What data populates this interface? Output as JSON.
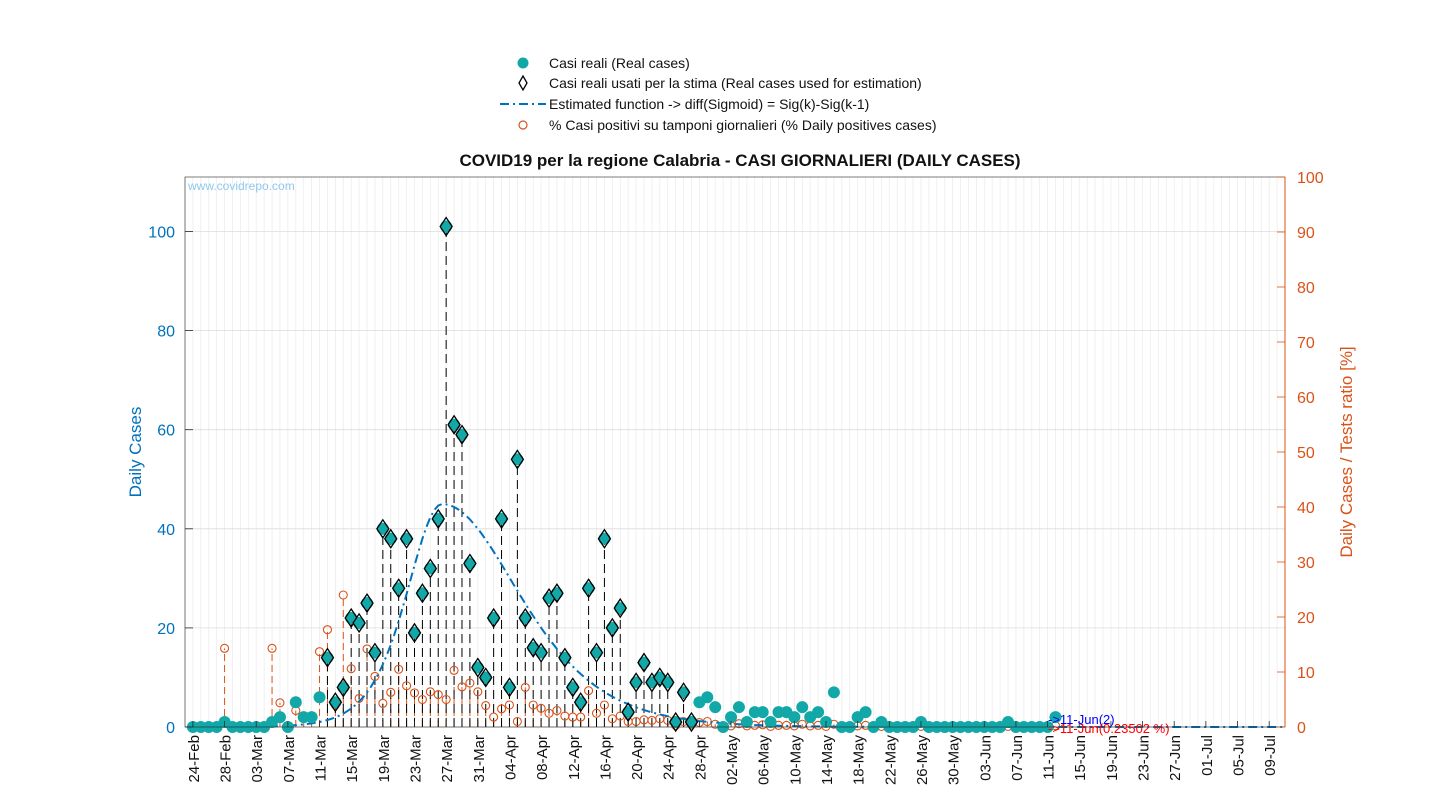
{
  "chart_data": {
    "type": "scatter",
    "title": "COVID19 per la regione Calabria - CASI GIORNALIERI (DAILY CASES)",
    "watermark": "www.covidrepo.com",
    "ylabel": "Daily Cases",
    "ylabel_right": "Daily Cases / Tests ratio [%]",
    "ylim": [
      0,
      111
    ],
    "ylim_right": [
      0,
      100
    ],
    "yticks": [
      0,
      20,
      40,
      60,
      80,
      100
    ],
    "yticks_right": [
      0,
      10,
      20,
      30,
      40,
      50,
      60,
      70,
      80,
      90,
      100
    ],
    "xlim_days": [
      -1,
      138
    ],
    "grid": "on",
    "legend_position": "top-center",
    "legend": [
      "Casi reali (Real cases)",
      "Casi reali usati per la stima (Real cases used for estimation)",
      "Estimated function -> diff(Sigmoid) = Sig(k)-Sig(k-1)",
      "% Casi positivi su tamponi giornalieri (% Daily positives cases)"
    ],
    "x_tick_labels": [
      "24-Feb",
      "28-Feb",
      "03-Mar",
      "07-Mar",
      "11-Mar",
      "15-Mar",
      "19-Mar",
      "23-Mar",
      "27-Mar",
      "31-Mar",
      "04-Apr",
      "08-Apr",
      "12-Apr",
      "16-Apr",
      "20-Apr",
      "24-Apr",
      "28-Apr",
      "02-May",
      "06-May",
      "10-May",
      "14-May",
      "18-May",
      "22-May",
      "26-May",
      "30-May",
      "03-Jun",
      "07-Jun",
      "11-Jun",
      "15-Jun",
      "19-Jun",
      "23-Jun",
      "27-Jun",
      "01-Jul",
      "05-Jul",
      "09-Jul"
    ],
    "series": [
      {
        "name": "Casi reali (Real cases)",
        "color": "#13a8a8",
        "estimation_range": [
          17,
          63
        ],
        "values": [
          0,
          0,
          0,
          0,
          1,
          0,
          0,
          0,
          0,
          0,
          1,
          2,
          0,
          5,
          2,
          2,
          6,
          14,
          5,
          8,
          22,
          21,
          25,
          15,
          40,
          38,
          28,
          38,
          19,
          27,
          32,
          42,
          101,
          61,
          59,
          33,
          12,
          10,
          22,
          42,
          8,
          54,
          22,
          16,
          15,
          26,
          27,
          14,
          8,
          5,
          28,
          15,
          38,
          20,
          24,
          3,
          9,
          13,
          9,
          10,
          9,
          1,
          7,
          1,
          5,
          6,
          4,
          0,
          2,
          4,
          1,
          3,
          3,
          1,
          3,
          3,
          2,
          4,
          2,
          3,
          1,
          7,
          0,
          0,
          2,
          3,
          0,
          1,
          0,
          0,
          0,
          0,
          1,
          0,
          0,
          0,
          0,
          0,
          0,
          0,
          0,
          0,
          0,
          1,
          0,
          0,
          0,
          0,
          0,
          2
        ]
      },
      {
        "name": "% Casi positivi su tamponi giornalieri (% Daily positives cases)",
        "color": "#d95319",
        "values": [
          0,
          0,
          0,
          0,
          14.3,
          0,
          0,
          0,
          0,
          0,
          14.3,
          4.4,
          0,
          3,
          2,
          1.5,
          13.7,
          17.7,
          4,
          24,
          10.6,
          5.2,
          14.2,
          9.2,
          4.3,
          6.3,
          10.5,
          7.5,
          6.2,
          5,
          6.4,
          5.9,
          5,
          10.3,
          7.3,
          8,
          6.4,
          3.9,
          1.8,
          3.3,
          4,
          1,
          7.2,
          4,
          3.4,
          2.5,
          3,
          2,
          1.8,
          1.8,
          6.6,
          2.5,
          4,
          1.5,
          2,
          1,
          1,
          1.3,
          1.2,
          1.5,
          1.2,
          0.3,
          1,
          0.5,
          0.8,
          1,
          0.5,
          0,
          0.2,
          0.6,
          0.2,
          0.3,
          0.4,
          0.1,
          0.3,
          0.3,
          0.2,
          0.5,
          0.2,
          0.3,
          0.1,
          0.5,
          0,
          0,
          0.2,
          0.3,
          0,
          0.1,
          0,
          0,
          0,
          0,
          0.1,
          0,
          0,
          0,
          0,
          0,
          0,
          0,
          0,
          0,
          0,
          0.1,
          0,
          0,
          0,
          0,
          0,
          0.24
        ]
      },
      {
        "name": "Estimated function -> diff(Sigmoid) = Sig(k)-Sig(k-1)",
        "color": "#0072bd",
        "peak_day": 31.5,
        "peak_value": 45,
        "x_end_day": 138
      }
    ],
    "annotations": [
      {
        "text": "->11-Jun(2)",
        "color": "#0000ff"
      },
      {
        "text": "->11-Jun(0.23502 %)",
        "color": "#ff0000"
      }
    ]
  }
}
